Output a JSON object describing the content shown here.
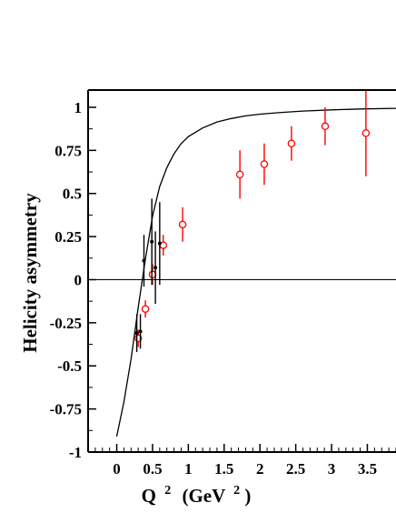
{
  "chart_data": {
    "type": "scatter",
    "ylabel": "Helicity asymmetry",
    "xlabel_main": "Q",
    "xlabel_exp": "2",
    "xlabel_unit_open": "(GeV",
    "xlabel_unit_exp": "2",
    "xlabel_unit_close": ")",
    "xlim": [
      -0.4,
      3.9
    ],
    "ylim": [
      -1.0,
      1.1
    ],
    "x_ticks": [
      {
        "value": 0,
        "label": "0"
      },
      {
        "value": 0.5,
        "label": "0.5"
      },
      {
        "value": 1,
        "label": "1"
      },
      {
        "value": 1.5,
        "label": "1.5"
      },
      {
        "value": 2,
        "label": "2"
      },
      {
        "value": 2.5,
        "label": "2.5"
      },
      {
        "value": 3,
        "label": "3"
      },
      {
        "value": 3.5,
        "label": "3.5"
      }
    ],
    "y_ticks": [
      {
        "value": 1,
        "label": "1"
      },
      {
        "value": 0.75,
        "label": "0.75"
      },
      {
        "value": 0.5,
        "label": "0.5"
      },
      {
        "value": 0.25,
        "label": "0.25"
      },
      {
        "value": 0,
        "label": "0"
      },
      {
        "value": -0.25,
        "label": "-0.25"
      },
      {
        "value": -0.5,
        "label": "-0.5"
      },
      {
        "value": -0.75,
        "label": "-0.75"
      },
      {
        "value": -1,
        "label": "-1"
      }
    ],
    "reference_line_y": 0,
    "series": [
      {
        "marker": "open-circle",
        "color": "#ff0000",
        "points": [
          {
            "x": 0.3,
            "y": -0.34,
            "err": 0.05
          },
          {
            "x": 0.4,
            "y": -0.17,
            "err": 0.05
          },
          {
            "x": 0.5,
            "y": 0.03,
            "err": 0.06
          },
          {
            "x": 0.65,
            "y": 0.2,
            "err": 0.06
          },
          {
            "x": 0.92,
            "y": 0.32,
            "err": 0.1
          },
          {
            "x": 1.72,
            "y": 0.61,
            "err": 0.14
          },
          {
            "x": 2.06,
            "y": 0.67,
            "err": 0.12
          },
          {
            "x": 2.44,
            "y": 0.79,
            "err": 0.1
          },
          {
            "x": 2.91,
            "y": 0.89,
            "err": 0.11
          },
          {
            "x": 3.48,
            "y": 0.85,
            "err": 0.25
          }
        ]
      },
      {
        "marker": "filled-dot",
        "color": "#000000",
        "points": [
          {
            "x": 0.28,
            "y": -0.31,
            "err": 0.11
          },
          {
            "x": 0.33,
            "y": -0.3,
            "err": 0.1
          },
          {
            "x": 0.38,
            "y": 0.11,
            "err": 0.15
          },
          {
            "x": 0.49,
            "y": 0.22,
            "err": 0.25
          },
          {
            "x": 0.54,
            "y": 0.07,
            "err": 0.21
          },
          {
            "x": 0.6,
            "y": 0.21,
            "err": 0.24
          }
        ]
      }
    ],
    "curve": {
      "color": "#000000",
      "x": [
        0,
        0.1,
        0.2,
        0.3,
        0.4,
        0.5,
        0.6,
        0.7,
        0.8,
        0.9,
        1.0,
        1.2,
        1.4,
        1.6,
        1.8,
        2.0,
        2.3,
        2.6,
        3.0,
        3.4,
        3.9
      ],
      "y": [
        -0.91,
        -0.71,
        -0.46,
        -0.16,
        0.12,
        0.37,
        0.54,
        0.65,
        0.73,
        0.79,
        0.83,
        0.88,
        0.915,
        0.935,
        0.95,
        0.96,
        0.97,
        0.978,
        0.985,
        0.99,
        0.994
      ]
    }
  }
}
